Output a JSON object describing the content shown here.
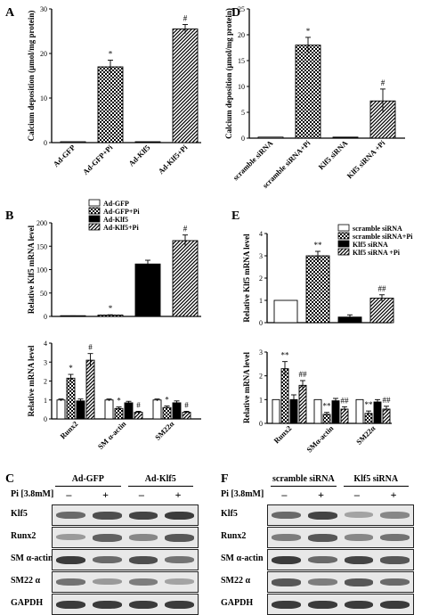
{
  "colors": {
    "axis": "#000000",
    "hatch": "#000000",
    "gel": "#e6e6e6",
    "band": "#2a2a2a"
  },
  "legend_B": [
    "Ad-GFP",
    "Ad-GFP+Pi",
    "Ad-Klf5",
    "Ad-Klf5+Pi"
  ],
  "legend_E": [
    "scramble siRNA",
    "scramble siRNA+Pi",
    "Klf5 siRNA",
    "Klf5 siRNA +Pi"
  ],
  "chart_data": [
    {
      "id": "A",
      "panel_letter": "A",
      "type": "bar",
      "ylabel": "Calcium deposition (μmol/mg protein)",
      "ylim": [
        0,
        30
      ],
      "yticks": [
        "0",
        "10",
        "20",
        "30"
      ],
      "categories": [
        "Ad-GFP",
        "Ad-GFP+Pi",
        "Ad-Klf5",
        "Ad-Klf5+Pi"
      ],
      "values": [
        0.2,
        17.0,
        0.2,
        25.5
      ],
      "errors": [
        0,
        1.5,
        0,
        1.0
      ],
      "fills": [
        "open",
        "checker",
        "solid",
        "diag"
      ],
      "annotations": [
        "",
        "*",
        "",
        "#"
      ]
    },
    {
      "id": "D",
      "panel_letter": "D",
      "type": "bar",
      "ylabel": "Calcium deposition (μmol/mg protein)",
      "ylim": [
        0,
        25
      ],
      "yticks": [
        "0",
        "5",
        "10",
        "15",
        "20",
        "25"
      ],
      "categories": [
        "scramble siRNA",
        "scramble siRNA+Pi",
        "Klf5 siRNA",
        "Klf5 siRNA +Pi"
      ],
      "values": [
        0.2,
        18.0,
        0.2,
        7.2
      ],
      "errors": [
        0,
        1.5,
        0,
        2.3
      ],
      "fills": [
        "open",
        "checker",
        "solid",
        "diag"
      ],
      "annotations": [
        "",
        "*",
        "",
        "#"
      ]
    },
    {
      "id": "B1",
      "panel_letter": "B",
      "type": "bar",
      "ylabel": "Relative Klf5 mRNA level",
      "ylim": [
        0,
        200
      ],
      "yticks": [
        "0",
        "50",
        "100",
        "150",
        "200"
      ],
      "series": [
        {
          "name": "Ad-GFP",
          "values": [
            1.0
          ]
        },
        {
          "name": "Ad-GFP+Pi",
          "values": [
            3.0
          ]
        },
        {
          "name": "Ad-Klf5",
          "values": [
            112
          ]
        },
        {
          "name": "Ad-Klf5+Pi",
          "values": [
            162
          ]
        }
      ],
      "errors": [
        0.2,
        0.5,
        8,
        12
      ],
      "fills": [
        "open",
        "checker",
        "solid",
        "diag"
      ],
      "annotations": [
        "",
        "*",
        "",
        "#"
      ]
    },
    {
      "id": "B2",
      "type": "bar",
      "ylabel": "Relative mRNA level",
      "ylim": [
        0,
        4
      ],
      "yticks": [
        "0",
        "1",
        "2",
        "3",
        "4"
      ],
      "categories": [
        "Runx2",
        "SM α-actin",
        "SM22α"
      ],
      "series": [
        {
          "name": "Ad-GFP",
          "values": [
            1.0,
            1.0,
            1.0
          ]
        },
        {
          "name": "Ad-GFP+Pi",
          "values": [
            2.15,
            0.55,
            0.6
          ]
        },
        {
          "name": "Ad-Klf5",
          "values": [
            0.95,
            0.85,
            0.85
          ]
        },
        {
          "name": "Ad-Klf5+Pi",
          "values": [
            3.1,
            0.35,
            0.35
          ]
        }
      ],
      "errors": [
        [
          0.05,
          0.2,
          0.1,
          0.35
        ],
        [
          0.05,
          0.08,
          0.08,
          0.05
        ],
        [
          0.05,
          0.08,
          0.1,
          0.05
        ]
      ],
      "fills": [
        "open",
        "checker",
        "solid",
        "diag"
      ],
      "annotations": [
        [
          "",
          "*",
          "",
          "#"
        ],
        [
          "",
          "*",
          "",
          "#"
        ],
        [
          "",
          "*",
          "",
          "#"
        ]
      ]
    },
    {
      "id": "E1",
      "panel_letter": "E",
      "type": "bar",
      "ylabel": "Relative Klf5 mRNA level",
      "ylim": [
        0,
        4
      ],
      "yticks": [
        "0",
        "1",
        "2",
        "3",
        "4"
      ],
      "series": [
        {
          "name": "scramble siRNA",
          "values": [
            1.0
          ]
        },
        {
          "name": "scramble siRNA+Pi",
          "values": [
            3.0
          ]
        },
        {
          "name": "Klf5 siRNA",
          "values": [
            0.25
          ]
        },
        {
          "name": "Klf5 siRNA +Pi",
          "values": [
            1.1
          ]
        }
      ],
      "errors": [
        0,
        0.2,
        0.1,
        0.15
      ],
      "fills": [
        "open",
        "checker",
        "solid",
        "diag"
      ],
      "annotations": [
        "",
        "**",
        "",
        "##"
      ]
    },
    {
      "id": "E2",
      "type": "bar",
      "ylabel": "Relative mRNA level",
      "ylim": [
        0,
        3
      ],
      "yticks": [
        "0",
        "1",
        "2",
        "3"
      ],
      "categories": [
        "Runx2",
        "SMα-actin",
        "SM22α"
      ],
      "series": [
        {
          "name": "scramble siRNA",
          "values": [
            1.0,
            1.0,
            1.0
          ]
        },
        {
          "name": "scramble siRNA+Pi",
          "values": [
            2.3,
            0.38,
            0.42
          ]
        },
        {
          "name": "Klf5 siRNA",
          "values": [
            1.0,
            0.95,
            0.9
          ]
        },
        {
          "name": "Klf5 siRNA +Pi",
          "values": [
            1.6,
            0.6,
            0.6
          ]
        }
      ],
      "errors": [
        [
          0,
          0.3,
          0.2,
          0.2
        ],
        [
          0,
          0.08,
          0.1,
          0.1
        ],
        [
          0,
          0.1,
          0.1,
          0.12
        ]
      ],
      "fills": [
        "open",
        "checker",
        "solid",
        "diag"
      ],
      "annotations": [
        [
          "",
          "**",
          "",
          "##"
        ],
        [
          "",
          "**",
          "",
          "##"
        ],
        [
          "",
          "**",
          "",
          "##"
        ]
      ]
    }
  ],
  "blot_C": {
    "panel_letter": "C",
    "groups": [
      "Ad-GFP",
      "Ad-Klf5"
    ],
    "treatment": "Pi [3.8mM]",
    "signs": [
      "–",
      "+",
      "–",
      "+"
    ],
    "rows": [
      {
        "label": "Klf5",
        "bands": [
          0.6,
          0.75,
          0.8,
          0.85
        ]
      },
      {
        "label": "Runx2",
        "bands": [
          0.35,
          0.65,
          0.45,
          0.7
        ]
      },
      {
        "label": "SM α-actin",
        "bands": [
          0.85,
          0.6,
          0.75,
          0.55
        ]
      },
      {
        "label": "SM22 α",
        "bands": [
          0.55,
          0.35,
          0.5,
          0.3
        ]
      },
      {
        "label": "GAPDH",
        "bands": [
          0.85,
          0.85,
          0.85,
          0.85
        ]
      }
    ]
  },
  "blot_F": {
    "panel_letter": "F",
    "groups": [
      "scramble siRNA",
      "Klf5 siRNA"
    ],
    "treatment": "Pi [3.8mM]",
    "signs": [
      "–",
      "+",
      "–",
      "+"
    ],
    "rows": [
      {
        "label": "Klf5",
        "bands": [
          0.6,
          0.8,
          0.3,
          0.45
        ]
      },
      {
        "label": "Runx2",
        "bands": [
          0.5,
          0.7,
          0.45,
          0.55
        ]
      },
      {
        "label": "SM α-actin",
        "bands": [
          0.85,
          0.6,
          0.8,
          0.7
        ]
      },
      {
        "label": "SM22 α",
        "bands": [
          0.7,
          0.5,
          0.7,
          0.6
        ]
      },
      {
        "label": "GAPDH",
        "bands": [
          0.85,
          0.85,
          0.85,
          0.85
        ]
      }
    ]
  }
}
